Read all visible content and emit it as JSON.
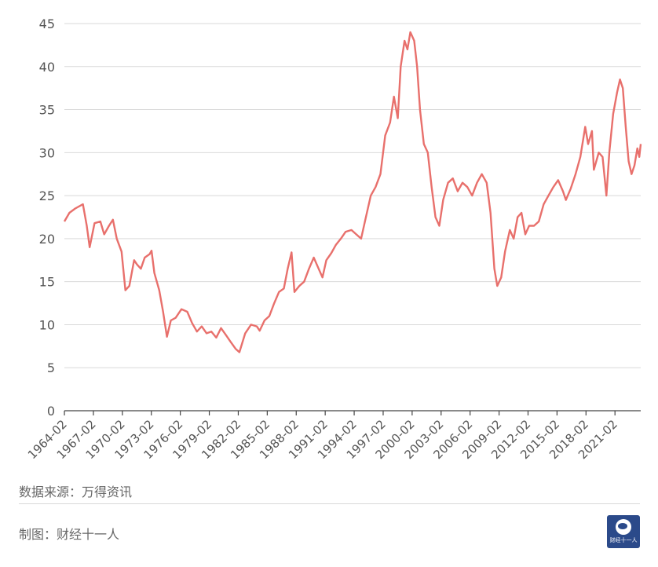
{
  "footer": {
    "source": "数据来源：万得资讯",
    "credit": "制图：财经十一人",
    "logo_text": "财经十一人"
  },
  "colors": {
    "line": "#e8706c",
    "grid": "#d9d9d9",
    "axis": "#444444"
  },
  "chart_data": {
    "type": "line",
    "title": "",
    "xlabel": "",
    "ylabel": "",
    "ylim": [
      0,
      45
    ],
    "yticks": [
      0,
      5,
      10,
      15,
      20,
      25,
      30,
      35,
      40,
      45
    ],
    "xtick_labels": [
      "1964-02",
      "1967-02",
      "1970-02",
      "1973-02",
      "1976-02",
      "1979-02",
      "1982-02",
      "1985-02",
      "1988-02",
      "1991-02",
      "1994-02",
      "1997-02",
      "2000-02",
      "2003-02",
      "2006-02",
      "2009-02",
      "2012-02",
      "2015-02",
      "2018-02",
      "2021-02"
    ],
    "x_start": 1964.08,
    "x_end": 2023.75,
    "grid": true,
    "series": [
      {
        "name": "",
        "points": [
          [
            1964.08,
            22.0
          ],
          [
            1964.6,
            23.0
          ],
          [
            1965.2,
            23.5
          ],
          [
            1966.0,
            24.0
          ],
          [
            1966.4,
            21.5
          ],
          [
            1966.7,
            19.0
          ],
          [
            1967.2,
            21.8
          ],
          [
            1967.8,
            22.0
          ],
          [
            1968.2,
            20.5
          ],
          [
            1968.7,
            21.5
          ],
          [
            1969.1,
            22.2
          ],
          [
            1969.5,
            20.0
          ],
          [
            1970.0,
            18.5
          ],
          [
            1970.4,
            14.0
          ],
          [
            1970.8,
            14.5
          ],
          [
            1971.3,
            17.5
          ],
          [
            1971.6,
            17.0
          ],
          [
            1972.0,
            16.5
          ],
          [
            1972.4,
            17.8
          ],
          [
            1972.9,
            18.2
          ],
          [
            1973.1,
            18.6
          ],
          [
            1973.4,
            16.0
          ],
          [
            1973.9,
            14.0
          ],
          [
            1974.3,
            11.5
          ],
          [
            1974.7,
            8.6
          ],
          [
            1975.1,
            10.5
          ],
          [
            1975.6,
            10.8
          ],
          [
            1976.2,
            11.8
          ],
          [
            1976.8,
            11.5
          ],
          [
            1977.3,
            10.2
          ],
          [
            1977.8,
            9.2
          ],
          [
            1978.3,
            9.8
          ],
          [
            1978.8,
            9.0
          ],
          [
            1979.3,
            9.2
          ],
          [
            1979.8,
            8.5
          ],
          [
            1980.3,
            9.6
          ],
          [
            1980.8,
            8.8
          ],
          [
            1981.3,
            8.0
          ],
          [
            1981.8,
            7.2
          ],
          [
            1982.2,
            6.8
          ],
          [
            1982.8,
            9.0
          ],
          [
            1983.4,
            10.0
          ],
          [
            1984.0,
            9.8
          ],
          [
            1984.3,
            9.3
          ],
          [
            1984.8,
            10.5
          ],
          [
            1985.3,
            11.0
          ],
          [
            1985.8,
            12.5
          ],
          [
            1986.3,
            13.8
          ],
          [
            1986.8,
            14.2
          ],
          [
            1987.2,
            16.5
          ],
          [
            1987.6,
            18.4
          ],
          [
            1987.9,
            13.8
          ],
          [
            1988.4,
            14.5
          ],
          [
            1988.9,
            15.0
          ],
          [
            1989.4,
            16.5
          ],
          [
            1989.9,
            17.8
          ],
          [
            1990.4,
            16.5
          ],
          [
            1990.8,
            15.5
          ],
          [
            1991.2,
            17.5
          ],
          [
            1991.7,
            18.3
          ],
          [
            1992.2,
            19.3
          ],
          [
            1992.7,
            20.0
          ],
          [
            1993.2,
            20.8
          ],
          [
            1993.8,
            21.0
          ],
          [
            1994.3,
            20.5
          ],
          [
            1994.8,
            20.0
          ],
          [
            1995.3,
            22.5
          ],
          [
            1995.8,
            25.0
          ],
          [
            1996.3,
            26.0
          ],
          [
            1996.8,
            27.5
          ],
          [
            1997.3,
            32.0
          ],
          [
            1997.8,
            33.5
          ],
          [
            1998.2,
            36.5
          ],
          [
            1998.6,
            34.0
          ],
          [
            1998.9,
            40.0
          ],
          [
            1999.3,
            43.0
          ],
          [
            1999.6,
            42.0
          ],
          [
            1999.9,
            44.0
          ],
          [
            2000.3,
            43.0
          ],
          [
            2000.6,
            40.0
          ],
          [
            2000.9,
            35.0
          ],
          [
            2001.3,
            31.0
          ],
          [
            2001.7,
            30.0
          ],
          [
            2002.1,
            26.0
          ],
          [
            2002.5,
            22.5
          ],
          [
            2002.9,
            21.5
          ],
          [
            2003.3,
            24.5
          ],
          [
            2003.8,
            26.5
          ],
          [
            2004.3,
            27.0
          ],
          [
            2004.8,
            25.5
          ],
          [
            2005.3,
            26.5
          ],
          [
            2005.8,
            26.0
          ],
          [
            2006.3,
            25.0
          ],
          [
            2006.8,
            26.5
          ],
          [
            2007.3,
            27.5
          ],
          [
            2007.8,
            26.5
          ],
          [
            2008.2,
            23.0
          ],
          [
            2008.6,
            16.5
          ],
          [
            2008.9,
            14.5
          ],
          [
            2009.3,
            15.5
          ],
          [
            2009.7,
            18.5
          ],
          [
            2010.2,
            21.0
          ],
          [
            2010.6,
            20.0
          ],
          [
            2011.0,
            22.5
          ],
          [
            2011.4,
            23.0
          ],
          [
            2011.8,
            20.5
          ],
          [
            2012.2,
            21.5
          ],
          [
            2012.7,
            21.5
          ],
          [
            2013.2,
            22.0
          ],
          [
            2013.7,
            24.0
          ],
          [
            2014.2,
            25.0
          ],
          [
            2014.7,
            26.0
          ],
          [
            2015.2,
            26.8
          ],
          [
            2015.7,
            25.5
          ],
          [
            2016.0,
            24.5
          ],
          [
            2016.5,
            25.8
          ],
          [
            2017.0,
            27.5
          ],
          [
            2017.5,
            29.5
          ],
          [
            2018.0,
            33.0
          ],
          [
            2018.3,
            31.0
          ],
          [
            2018.7,
            32.5
          ],
          [
            2018.9,
            28.0
          ],
          [
            2019.4,
            30.0
          ],
          [
            2019.8,
            29.5
          ],
          [
            2020.2,
            25.0
          ],
          [
            2020.5,
            30.0
          ],
          [
            2020.9,
            34.5
          ],
          [
            2021.3,
            37.0
          ],
          [
            2021.6,
            38.5
          ],
          [
            2021.9,
            37.5
          ],
          [
            2022.2,
            33.0
          ],
          [
            2022.5,
            29.0
          ],
          [
            2022.8,
            27.5
          ],
          [
            2023.1,
            28.5
          ],
          [
            2023.4,
            30.5
          ],
          [
            2023.6,
            29.5
          ],
          [
            2023.75,
            31.0
          ]
        ]
      }
    ]
  }
}
